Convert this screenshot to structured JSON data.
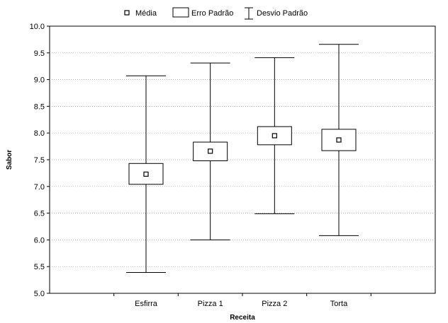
{
  "chart_data": {
    "type": "boxplot",
    "categories": [
      "Esfirra",
      "Pizza 1",
      "Pizza 2",
      "Torta"
    ],
    "series": [
      {
        "category": "Esfirra",
        "mean": 7.23,
        "se_low": 7.04,
        "se_high": 7.43,
        "sd_low": 5.39,
        "sd_high": 9.07
      },
      {
        "category": "Pizza 1",
        "mean": 7.66,
        "se_low": 7.48,
        "se_high": 7.83,
        "sd_low": 6.0,
        "sd_high": 9.31
      },
      {
        "category": "Pizza 2",
        "mean": 7.95,
        "se_low": 7.78,
        "se_high": 8.12,
        "sd_low": 6.49,
        "sd_high": 9.41
      },
      {
        "category": "Torta",
        "mean": 7.87,
        "se_low": 7.67,
        "se_high": 8.07,
        "sd_low": 6.08,
        "sd_high": 9.66
      }
    ],
    "xlabel": "Receita",
    "ylabel": "Sabor",
    "ylim": [
      5.0,
      10.0
    ],
    "yticks": [
      "5.0",
      "5.5",
      "6.0",
      "6.5",
      "7.0",
      "7.5",
      "8.0",
      "8.5",
      "9.0",
      "9.5",
      "10.0"
    ],
    "grid": true,
    "legend": {
      "placement": "top",
      "entries": [
        "Média",
        "Erro Padrão",
        "Desvio Padrão"
      ]
    }
  }
}
